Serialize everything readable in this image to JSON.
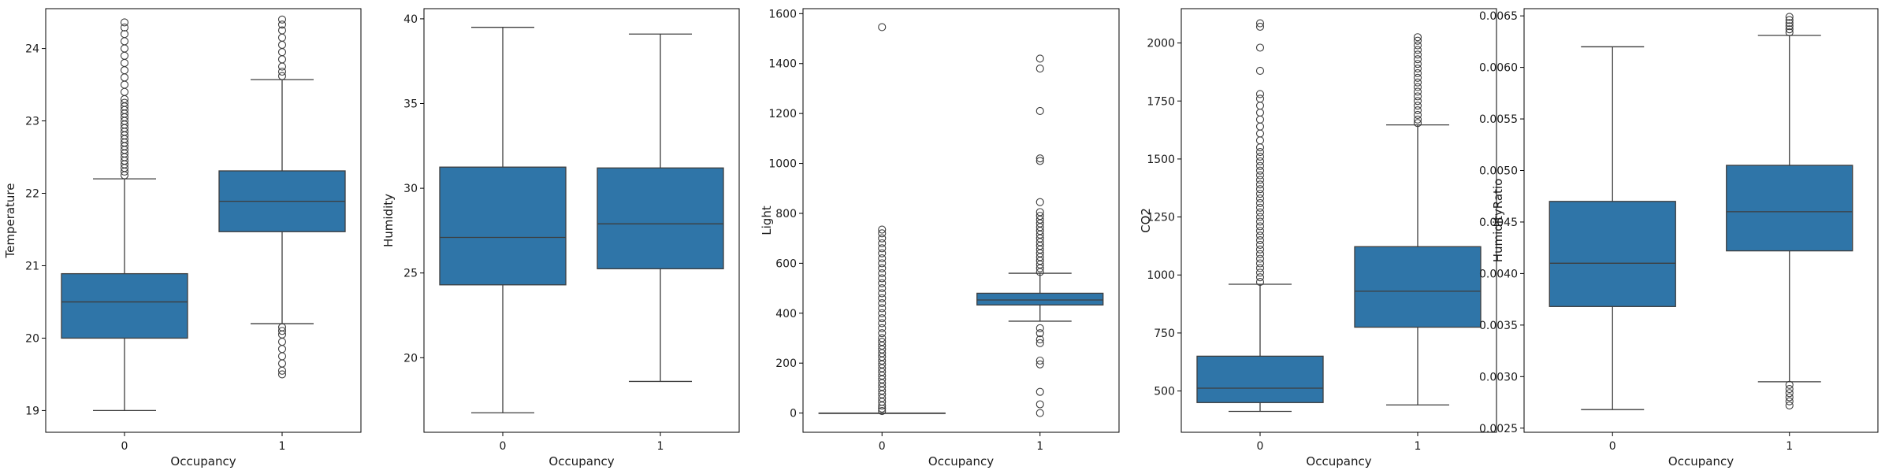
{
  "figure": {
    "box_color": "#2f75a8",
    "line_color": "#3d3d3d"
  },
  "chart_data": [
    {
      "type": "box",
      "xlabel": "Occupancy",
      "ylabel": "Temperature",
      "categories": [
        "0",
        "1"
      ],
      "ylim": [
        18.7,
        24.55
      ],
      "yticks": [
        19,
        20,
        21,
        22,
        23,
        24
      ],
      "tick_decimals": 0,
      "boxes": [
        {
          "category": "0",
          "whisker_low": 19.0,
          "q1": 20.0,
          "median": 20.5,
          "q3": 20.89,
          "whisker_high": 22.2,
          "outliers": [
            22.25,
            22.3,
            22.35,
            22.4,
            22.45,
            22.5,
            22.55,
            22.6,
            22.65,
            22.7,
            22.75,
            22.8,
            22.85,
            22.9,
            22.95,
            23.0,
            23.05,
            23.1,
            23.15,
            23.2,
            23.25,
            23.3,
            23.4,
            23.5,
            23.6,
            23.7,
            23.8,
            23.9,
            24.0,
            24.1,
            24.2,
            24.29,
            24.36
          ]
        },
        {
          "category": "1",
          "whisker_low": 20.2,
          "q1": 21.47,
          "median": 21.89,
          "q3": 22.31,
          "whisker_high": 23.57,
          "outliers": [
            19.5,
            19.55,
            19.65,
            19.75,
            19.85,
            19.95,
            20.05,
            20.1,
            20.15,
            23.62,
            23.68,
            23.75,
            23.85,
            23.95,
            24.05,
            24.15,
            24.25,
            24.33,
            24.4
          ]
        }
      ]
    },
    {
      "type": "box",
      "xlabel": "Occupancy",
      "ylabel": "Humidity",
      "categories": [
        "0",
        "1"
      ],
      "ylim": [
        15.6,
        40.6
      ],
      "yticks": [
        20,
        25,
        30,
        35,
        40
      ],
      "tick_decimals": 0,
      "boxes": [
        {
          "category": "0",
          "whisker_low": 16.75,
          "q1": 24.3,
          "median": 27.1,
          "q3": 31.25,
          "whisker_high": 39.5,
          "outliers": []
        },
        {
          "category": "1",
          "whisker_low": 18.6,
          "q1": 25.25,
          "median": 27.9,
          "q3": 31.2,
          "whisker_high": 39.1,
          "outliers": []
        }
      ]
    },
    {
      "type": "box",
      "xlabel": "Occupancy",
      "ylabel": "Light",
      "categories": [
        "0",
        "1"
      ],
      "ylim": [
        -77,
        1620
      ],
      "yticks": [
        0,
        200,
        400,
        600,
        800,
        1000,
        1200,
        1400,
        1600
      ],
      "tick_decimals": 0,
      "boxes": [
        {
          "category": "0",
          "whisker_low": 0,
          "q1": 0,
          "median": 0,
          "q3": 0,
          "whisker_high": 0,
          "outliers": [
            8,
            18,
            30,
            45,
            60,
            75,
            90,
            105,
            120,
            135,
            150,
            165,
            180,
            195,
            210,
            225,
            240,
            255,
            270,
            285,
            300,
            320,
            340,
            360,
            380,
            400,
            420,
            440,
            460,
            480,
            500,
            520,
            540,
            560,
            580,
            600,
            620,
            640,
            660,
            680,
            700,
            720,
            735,
            1546
          ]
        },
        {
          "category": "1",
          "whisker_low": 368,
          "q1": 433,
          "median": 453,
          "q3": 480,
          "whisker_high": 560,
          "outliers": [
            0,
            35,
            85,
            195,
            210,
            280,
            295,
            320,
            340,
            565,
            580,
            595,
            610,
            625,
            640,
            655,
            670,
            685,
            700,
            715,
            730,
            745,
            760,
            775,
            790,
            805,
            845,
            1010,
            1020,
            1210,
            1380,
            1420
          ]
        }
      ]
    },
    {
      "type": "box",
      "xlabel": "Occupancy",
      "ylabel": "CO2",
      "categories": [
        "0",
        "1"
      ],
      "ylim": [
        322,
        2148
      ],
      "yticks": [
        500,
        750,
        1000,
        1250,
        1500,
        1750,
        2000
      ],
      "tick_decimals": 0,
      "boxes": [
        {
          "category": "0",
          "whisker_low": 412,
          "q1": 450,
          "median": 512,
          "q3": 650,
          "whisker_high": 960,
          "outliers": [
            970,
            990,
            1010,
            1030,
            1050,
            1070,
            1090,
            1110,
            1130,
            1150,
            1170,
            1190,
            1210,
            1230,
            1250,
            1270,
            1290,
            1310,
            1330,
            1350,
            1370,
            1390,
            1410,
            1430,
            1450,
            1470,
            1490,
            1510,
            1530,
            1550,
            1580,
            1610,
            1640,
            1670,
            1700,
            1730,
            1760,
            1780,
            1880,
            1980,
            2070,
            2085
          ]
        },
        {
          "category": "1",
          "whisker_low": 440,
          "q1": 775,
          "median": 930,
          "q3": 1122,
          "whisker_high": 1647,
          "outliers": [
            1655,
            1670,
            1690,
            1710,
            1730,
            1750,
            1770,
            1790,
            1810,
            1830,
            1850,
            1870,
            1890,
            1910,
            1930,
            1950,
            1970,
            1990,
            2010,
            2025
          ]
        }
      ]
    },
    {
      "type": "box",
      "xlabel": "Occupancy",
      "ylabel": "HumidityRatio",
      "categories": [
        "0",
        "1"
      ],
      "ylim": [
        0.00246,
        0.00657
      ],
      "yticks": [
        0.0025,
        0.003,
        0.0035,
        0.004,
        0.0045,
        0.005,
        0.0055,
        0.006,
        0.0065
      ],
      "tick_decimals": 4,
      "boxes": [
        {
          "category": "0",
          "whisker_low": 0.00268,
          "q1": 0.00368,
          "median": 0.0041,
          "q3": 0.0047,
          "whisker_high": 0.0062,
          "outliers": []
        },
        {
          "category": "1",
          "whisker_low": 0.00295,
          "q1": 0.00422,
          "median": 0.0046,
          "q3": 0.00505,
          "whisker_high": 0.00631,
          "outliers": [
            0.00272,
            0.00276,
            0.0028,
            0.00284,
            0.00288,
            0.00292,
            0.00634,
            0.00637,
            0.0064,
            0.00643,
            0.00646,
            0.00649
          ]
        }
      ]
    }
  ]
}
